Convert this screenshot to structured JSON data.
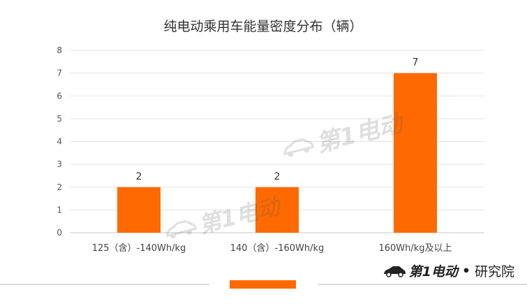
{
  "chart_data": {
    "type": "bar",
    "title": "纯电动乘用车能量密度分布（辆）",
    "categories": [
      "125（含）-140Wh/kg",
      "140（含）-160Wh/kg",
      "160Wh/kg及以上"
    ],
    "values": [
      2,
      2,
      7
    ],
    "ylim": [
      0,
      8
    ],
    "yticks": [
      0,
      1,
      2,
      3,
      4,
      5,
      6,
      7,
      8
    ],
    "grid": true,
    "bar_color": "#ff6a00",
    "data_labels": true
  },
  "brand": {
    "name": "第1电动",
    "separator": "•",
    "sub": "研究院",
    "icon": "car-logo-icon"
  },
  "watermark": {
    "text": "第1电动",
    "icon": "car-logo-icon"
  },
  "footer": {
    "accent_color": "#ff6a00"
  }
}
